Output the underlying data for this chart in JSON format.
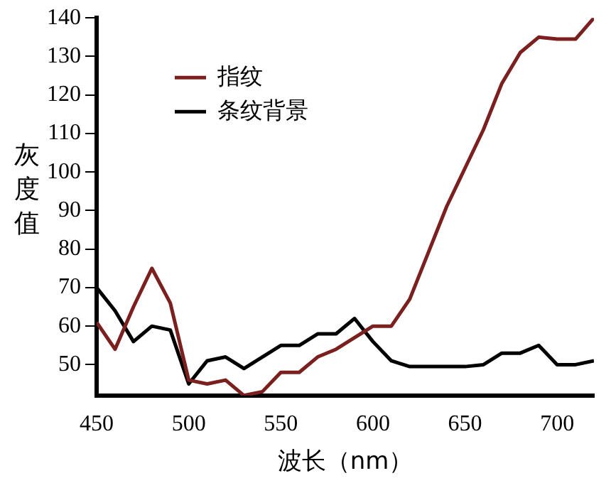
{
  "chart_data": {
    "type": "line",
    "xlabel": "波长（nm）",
    "ylabel": "灰度值",
    "x": [
      450,
      460,
      470,
      480,
      490,
      500,
      510,
      520,
      530,
      540,
      550,
      560,
      570,
      580,
      590,
      600,
      610,
      620,
      630,
      640,
      650,
      660,
      670,
      680,
      690,
      700,
      710,
      720
    ],
    "series": [
      {
        "name": "指纹",
        "color": "#7b1f1f",
        "values": [
          61,
          54,
          65,
          75,
          66,
          46,
          45,
          46,
          42,
          43,
          48,
          48,
          52,
          54,
          57,
          60,
          60,
          67,
          79,
          91,
          101,
          111,
          123,
          131,
          135,
          134.5,
          134.5,
          140
        ]
      },
      {
        "name": "条纹背景",
        "color": "#000000",
        "values": [
          70,
          64,
          56,
          60,
          59,
          45,
          51,
          52,
          49,
          52,
          55,
          55,
          58,
          58,
          62,
          56,
          51,
          49.5,
          49.5,
          49.5,
          49.5,
          50,
          53,
          53,
          55,
          50,
          50,
          51
        ]
      }
    ],
    "xlim": [
      450,
      720
    ],
    "xticks": [
      450,
      500,
      550,
      600,
      650,
      700
    ],
    "ylim": [
      42,
      140
    ],
    "yticks": [
      50,
      60,
      70,
      80,
      90,
      100,
      110,
      120,
      130,
      140
    ],
    "grid": false,
    "legend": "top left",
    "marker": "none",
    "line_style": "solid"
  }
}
